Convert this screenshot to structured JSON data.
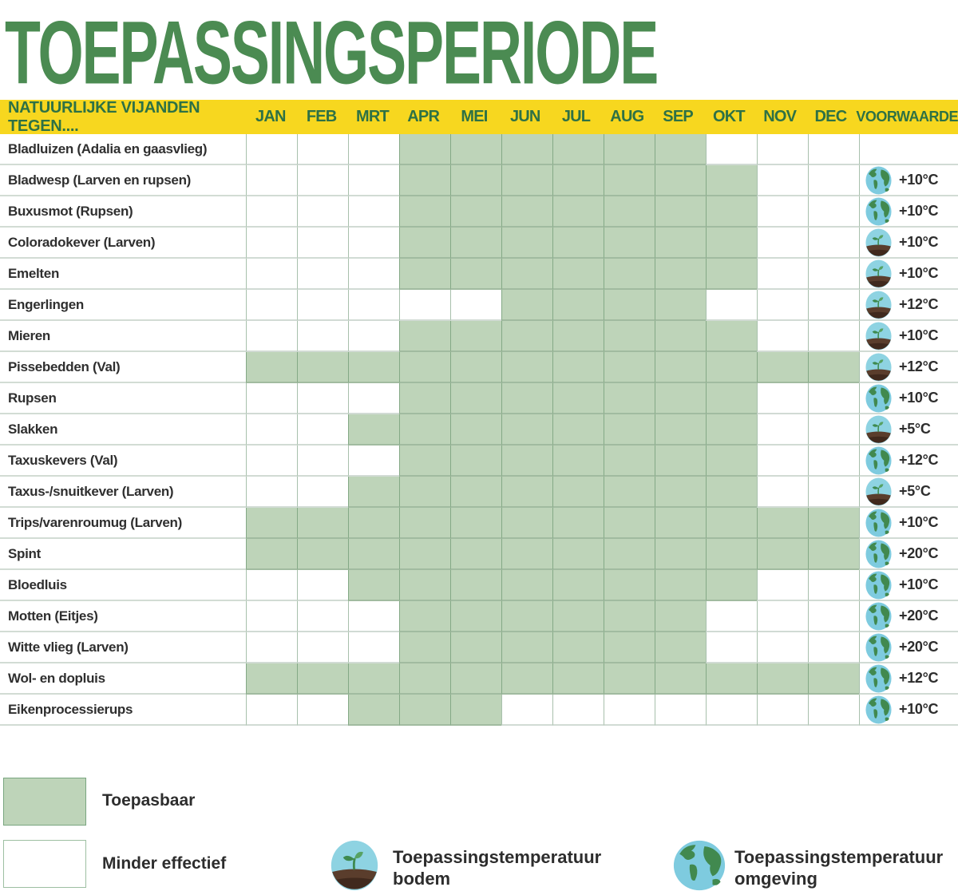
{
  "title": "TOEPASSINGSPERIODE",
  "table": {
    "header": {
      "label": "NATUURLIJKE VIJANDEN TEGEN....",
      "condition": "VOORWAARDE"
    }
  },
  "chart_data": {
    "type": "heatmap",
    "title": "TOEPASSINGSPERIODE",
    "x_labels": [
      "JAN",
      "FEB",
      "MRT",
      "APR",
      "MEI",
      "JUN",
      "JUL",
      "AUG",
      "SEP",
      "OKT",
      "NOV",
      "DEC"
    ],
    "cell_states": {
      "filled": "Toepasbaar",
      "empty": "Minder effectief"
    },
    "icon_meanings": {
      "soil": "Toepassingstemperatuur bodem",
      "globe": "Toepassingstemperatuur omgeving"
    },
    "rows": [
      {
        "label": "Bladluizen (Adalia en gaasvlieg)",
        "active_months": [
          "APR",
          "MEI",
          "JUN",
          "JUL",
          "AUG",
          "SEP"
        ],
        "condition": null
      },
      {
        "label": "Bladwesp (Larven en rupsen)",
        "active_months": [
          "APR",
          "MEI",
          "JUN",
          "JUL",
          "AUG",
          "SEP",
          "OKT"
        ],
        "condition": {
          "icon": "globe",
          "temp": "+10°C"
        }
      },
      {
        "label": "Buxusmot (Rupsen)",
        "active_months": [
          "APR",
          "MEI",
          "JUN",
          "JUL",
          "AUG",
          "SEP",
          "OKT"
        ],
        "condition": {
          "icon": "globe",
          "temp": "+10°C"
        }
      },
      {
        "label": "Coloradokever (Larven)",
        "active_months": [
          "APR",
          "MEI",
          "JUN",
          "JUL",
          "AUG",
          "SEP",
          "OKT"
        ],
        "condition": {
          "icon": "soil",
          "temp": "+10°C"
        }
      },
      {
        "label": "Emelten",
        "active_months": [
          "APR",
          "MEI",
          "JUN",
          "JUL",
          "AUG",
          "SEP",
          "OKT"
        ],
        "condition": {
          "icon": "soil",
          "temp": "+10°C"
        }
      },
      {
        "label": "Engerlingen",
        "active_months": [
          "JUN",
          "JUL",
          "AUG",
          "SEP"
        ],
        "condition": {
          "icon": "soil",
          "temp": "+12°C"
        }
      },
      {
        "label": "Mieren",
        "active_months": [
          "APR",
          "MEI",
          "JUN",
          "JUL",
          "AUG",
          "SEP",
          "OKT"
        ],
        "condition": {
          "icon": "soil",
          "temp": "+10°C"
        }
      },
      {
        "label": "Pissebedden (Val)",
        "active_months": [
          "JAN",
          "FEB",
          "MRT",
          "APR",
          "MEI",
          "JUN",
          "JUL",
          "AUG",
          "SEP",
          "OKT",
          "NOV",
          "DEC"
        ],
        "condition": {
          "icon": "soil",
          "temp": "+12°C"
        }
      },
      {
        "label": "Rupsen",
        "active_months": [
          "APR",
          "MEI",
          "JUN",
          "JUL",
          "AUG",
          "SEP",
          "OKT"
        ],
        "condition": {
          "icon": "globe",
          "temp": "+10°C"
        }
      },
      {
        "label": "Slakken",
        "active_months": [
          "MRT",
          "APR",
          "MEI",
          "JUN",
          "JUL",
          "AUG",
          "SEP",
          "OKT"
        ],
        "condition": {
          "icon": "soil",
          "temp": "+5°C"
        }
      },
      {
        "label": "Taxuskevers (Val)",
        "active_months": [
          "APR",
          "MEI",
          "JUN",
          "JUL",
          "AUG",
          "SEP",
          "OKT"
        ],
        "condition": {
          "icon": "globe",
          "temp": "+12°C"
        }
      },
      {
        "label": "Taxus-/snuitkever (Larven)",
        "active_months": [
          "MRT",
          "APR",
          "MEI",
          "JUN",
          "JUL",
          "AUG",
          "SEP",
          "OKT"
        ],
        "condition": {
          "icon": "soil",
          "temp": "+5°C"
        }
      },
      {
        "label": "Trips/varenroumug (Larven)",
        "active_months": [
          "JAN",
          "FEB",
          "MRT",
          "APR",
          "MEI",
          "JUN",
          "JUL",
          "AUG",
          "SEP",
          "OKT",
          "NOV",
          "DEC"
        ],
        "condition": {
          "icon": "globe",
          "temp": "+10°C"
        }
      },
      {
        "label": "Spint",
        "active_months": [
          "JAN",
          "FEB",
          "MRT",
          "APR",
          "MEI",
          "JUN",
          "JUL",
          "AUG",
          "SEP",
          "OKT",
          "NOV",
          "DEC"
        ],
        "condition": {
          "icon": "globe",
          "temp": "+20°C"
        }
      },
      {
        "label": "Bloedluis",
        "active_months": [
          "MRT",
          "APR",
          "MEI",
          "JUN",
          "JUL",
          "AUG",
          "SEP",
          "OKT"
        ],
        "condition": {
          "icon": "globe",
          "temp": "+10°C"
        }
      },
      {
        "label": "Motten (Eitjes)",
        "active_months": [
          "APR",
          "MEI",
          "JUN",
          "JUL",
          "AUG",
          "SEP"
        ],
        "condition": {
          "icon": "globe",
          "temp": "+20°C"
        }
      },
      {
        "label": "Witte vlieg (Larven)",
        "active_months": [
          "APR",
          "MEI",
          "JUN",
          "JUL",
          "AUG",
          "SEP"
        ],
        "condition": {
          "icon": "globe",
          "temp": "+20°C"
        }
      },
      {
        "label": "Wol- en dopluis",
        "active_months": [
          "JAN",
          "FEB",
          "MRT",
          "APR",
          "MEI",
          "JUN",
          "JUL",
          "AUG",
          "SEP",
          "OKT",
          "NOV",
          "DEC"
        ],
        "condition": {
          "icon": "globe",
          "temp": "+12°C"
        }
      },
      {
        "label": "Eikenprocessierups",
        "active_months": [
          "MRT",
          "APR",
          "MEI"
        ],
        "condition": {
          "icon": "globe",
          "temp": "+10°C"
        }
      }
    ]
  },
  "legend": {
    "applicable": "Toepasbaar",
    "less_effective": "Minder effectief",
    "soil": {
      "line1": "Toepassingstemperatuur",
      "line2": "bodem"
    },
    "ambient": {
      "line1": "Toepassingstemperatuur",
      "line2": "omgeving"
    }
  },
  "colors": {
    "title_green": "#4b8b52",
    "header_yellow": "#f7d71f",
    "header_text_green": "#2e7145",
    "cell_green": "#bed4b9",
    "label_text": "#2f2f2f",
    "globe_water": "#7ecbdf",
    "globe_land": "#41894f",
    "soil_sky": "#8ed3e2",
    "soil_brown": "#5a3d2c",
    "soil_dark_brown": "#40291d",
    "sprout_green": "#3e8a4f",
    "sprout_light_green": "#57a263"
  }
}
